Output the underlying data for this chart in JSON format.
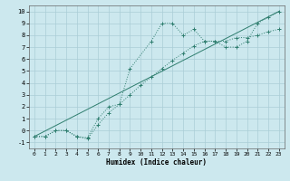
{
  "xlabel": "Humidex (Indice chaleur)",
  "ylabel": "",
  "bg_color": "#cce8ee",
  "grid_color": "#aacdd6",
  "line_color": "#2e7d6e",
  "xlim": [
    -0.5,
    23.5
  ],
  "ylim": [
    -1.5,
    10.5
  ],
  "xticks": [
    0,
    1,
    2,
    3,
    4,
    5,
    6,
    7,
    8,
    9,
    10,
    11,
    12,
    13,
    14,
    15,
    16,
    17,
    18,
    19,
    20,
    21,
    22,
    23
  ],
  "yticks": [
    -1,
    0,
    1,
    2,
    3,
    4,
    5,
    6,
    7,
    8,
    9,
    10
  ],
  "line1_x": [
    0,
    1,
    2,
    3,
    4,
    5,
    6,
    7,
    8,
    9,
    11,
    12,
    13,
    14,
    15,
    16,
    17,
    18,
    19,
    20,
    21,
    22,
    23
  ],
  "line1_y": [
    -0.5,
    -0.5,
    0.0,
    0.0,
    -0.5,
    -0.6,
    1.0,
    2.0,
    2.2,
    5.2,
    7.5,
    9.0,
    9.0,
    8.0,
    8.5,
    7.5,
    7.5,
    7.0,
    7.0,
    7.5,
    9.0,
    9.5,
    10.0
  ],
  "line2_x": [
    0,
    1,
    2,
    3,
    4,
    5,
    6,
    7,
    8,
    9,
    10,
    11,
    12,
    13,
    14,
    15,
    16,
    17,
    18,
    19,
    20,
    21,
    22,
    23
  ],
  "line2_y": [
    -0.5,
    -0.5,
    0.0,
    0.0,
    -0.5,
    -0.7,
    0.5,
    1.5,
    2.2,
    3.0,
    3.8,
    4.5,
    5.2,
    5.9,
    6.5,
    7.1,
    7.5,
    7.5,
    7.5,
    7.8,
    7.8,
    8.0,
    8.3,
    8.5
  ],
  "line3_x": [
    0,
    23
  ],
  "line3_y": [
    -0.5,
    10.0
  ],
  "markersize": 2.0
}
